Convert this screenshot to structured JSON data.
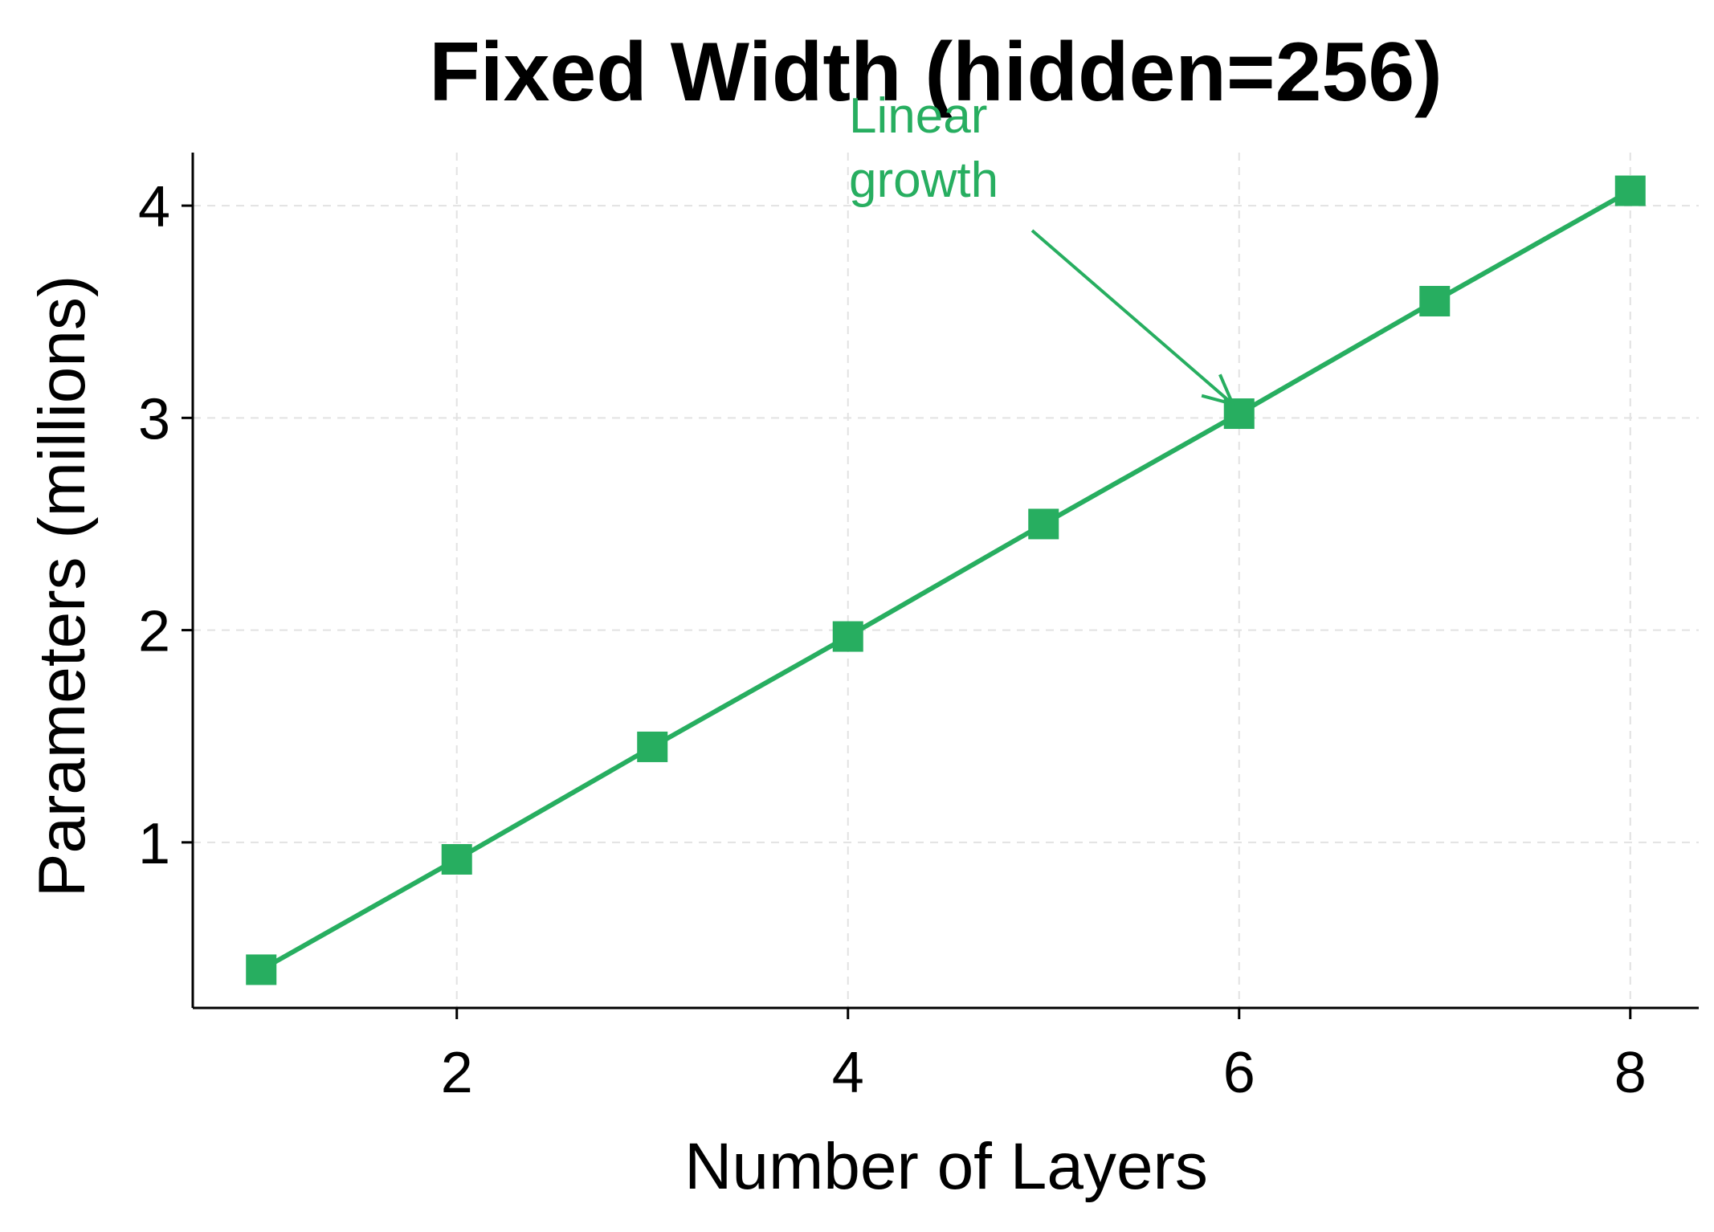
{
  "chart_data": {
    "type": "line",
    "title": "Fixed Width (hidden=256)",
    "xlabel": "Number of Layers",
    "ylabel": "Parameters (millions)",
    "x": [
      1,
      2,
      3,
      4,
      5,
      6,
      7,
      8
    ],
    "series": [
      {
        "values": [
          0.4,
          0.92,
          1.45,
          1.97,
          2.5,
          3.02,
          3.55,
          4.07
        ],
        "color": "#27ae60",
        "marker": "square"
      }
    ],
    "xlim": [
      0.65,
      8.35
    ],
    "ylim": [
      0.22,
      4.25
    ],
    "xticks": [
      2,
      4,
      6,
      8
    ],
    "yticks": [
      1,
      2,
      3,
      4
    ],
    "grid": true,
    "annotation": {
      "text_lines": [
        "Linear",
        "growth"
      ],
      "target": {
        "x": 6,
        "y": 3.02
      },
      "color": "#27ae60"
    }
  }
}
